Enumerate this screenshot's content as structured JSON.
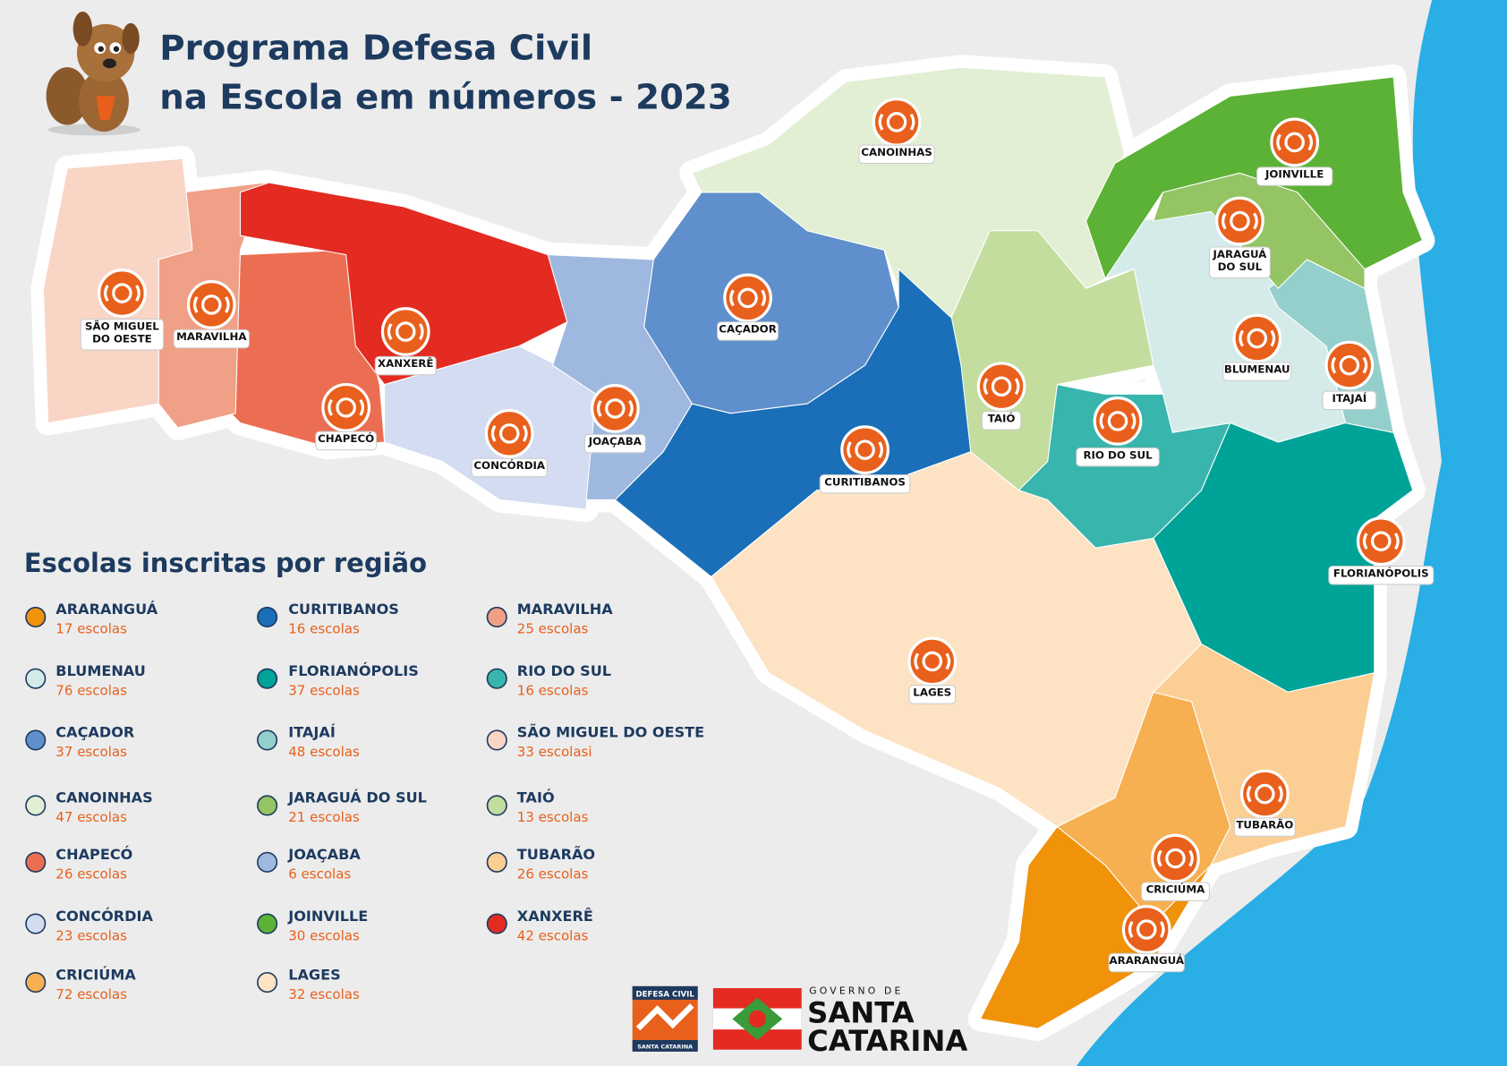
{
  "header": {
    "title_line1": "Programa Defesa Civil",
    "title_line2": "na Escola em números - 2023"
  },
  "legend": {
    "title": "Escolas inscritas por região",
    "items": [
      {
        "name": "ARARANGUÁ",
        "count": "17 escolas",
        "color": "#f0920a"
      },
      {
        "name": "BLUMENAU",
        "count": "76 escolas",
        "color": "#d5ebe9"
      },
      {
        "name": "CAÇADOR",
        "count": "37 escolas",
        "color": "#5f8fcc"
      },
      {
        "name": "CANOINHAS",
        "count": "47 escolas",
        "color": "#e2efd4"
      },
      {
        "name": "CHAPECÓ",
        "count": "26 escolas",
        "color": "#ec6e52"
      },
      {
        "name": "CONCÓRDIA",
        "count": "23 escolas",
        "color": "#d3dcf1"
      },
      {
        "name": "CRICIÚMA",
        "count": "72 escolas",
        "color": "#f6b052"
      },
      {
        "name": "CURITIBANOS",
        "count": "16 escolas",
        "color": "#1a6fb8"
      },
      {
        "name": "FLORIANÓPOLIS",
        "count": "37 escolas",
        "color": "#00a397"
      },
      {
        "name": "ITAJAÍ",
        "count": "48 escolas",
        "color": "#94cfcb"
      },
      {
        "name": "JARAGUÁ DO SUL",
        "count": "21 escolas",
        "color": "#94c464"
      },
      {
        "name": "JOAÇABA",
        "count": "6 escolas",
        "color": "#9fb8df"
      },
      {
        "name": "JOINVILLE",
        "count": "30 escolas",
        "color": "#5cb236"
      },
      {
        "name": "LAGES",
        "count": "32 escolas",
        "color": "#fde3c4"
      },
      {
        "name": "MARAVILHA",
        "count": "25 escolas",
        "color": "#f0a086"
      },
      {
        "name": "RIO DO SUL",
        "count": "16 escolas",
        "color": "#38b5ad"
      },
      {
        "name": "SÃO MIGUEL DO OESTE",
        "count": "33 escolasi",
        "color": "#f9d5c6"
      },
      {
        "name": "TAIÓ",
        "count": "13 escolas",
        "color": "#c2dd9e"
      },
      {
        "name": "TUBARÃO",
        "count": "26 escolas",
        "color": "#fbcf93"
      },
      {
        "name": "XANXERÊ",
        "count": "42 escolas",
        "color": "#e32b22"
      }
    ]
  },
  "map_labels": [
    {
      "lines": [
        "CANOINHAS"
      ]
    },
    {
      "lines": [
        "JOINVILLE"
      ]
    },
    {
      "lines": [
        "JARAGUÁ",
        "DO SUL"
      ]
    },
    {
      "lines": [
        "SÃO MIGUEL",
        "DO OESTE"
      ]
    },
    {
      "lines": [
        "MARAVILHA"
      ]
    },
    {
      "lines": [
        "CAÇADOR"
      ]
    },
    {
      "lines": [
        "XANXERÊ"
      ]
    },
    {
      "lines": [
        "BLUMENAU"
      ]
    },
    {
      "lines": [
        "ITAJAÍ"
      ]
    },
    {
      "lines": [
        "TAIÓ"
      ]
    },
    {
      "lines": [
        "RIO DO SUL"
      ]
    },
    {
      "lines": [
        "CHAPECÓ"
      ]
    },
    {
      "lines": [
        "JOAÇABA"
      ]
    },
    {
      "lines": [
        "CONCÓRDIA"
      ]
    },
    {
      "lines": [
        "CURITIBANOS"
      ]
    },
    {
      "lines": [
        "FLORIANÓPOLIS"
      ]
    },
    {
      "lines": [
        "LAGES"
      ]
    },
    {
      "lines": [
        "TUBARÃO"
      ]
    },
    {
      "lines": [
        "CRICIÚMA"
      ]
    },
    {
      "lines": [
        "ARARANGUÁ"
      ]
    }
  ],
  "footer": {
    "defesa_top": "DEFESA CIVIL",
    "defesa_bottom": "SANTA CATARINA",
    "gov_small": "GOVERNO DE",
    "gov_line1": "SANTA",
    "gov_line2": "CATARINA"
  }
}
